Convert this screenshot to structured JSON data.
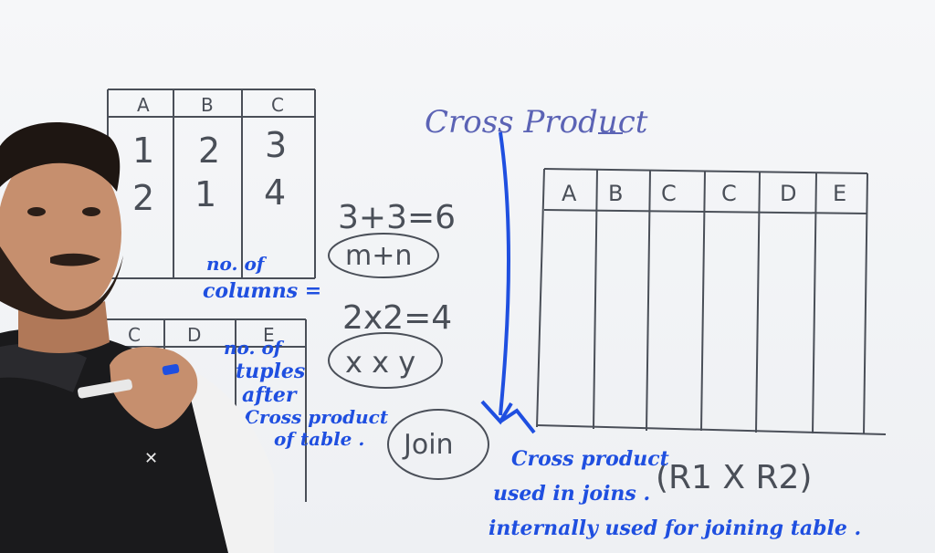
{
  "left_table": {
    "headers": [
      "A",
      "B",
      "C"
    ],
    "rows": [
      [
        "1",
        "2",
        "3"
      ],
      [
        "2",
        "1",
        "4"
      ]
    ]
  },
  "lower_table": {
    "headers": [
      "C",
      "D",
      "E"
    ]
  },
  "title": "Cross Product",
  "columns_eq": "3+3=6",
  "columns_formula": "m+n",
  "tuples_eq": "2x2=4",
  "tuples_formula": "x x y",
  "join_label": "Join",
  "product_label": "(R1 X R2)",
  "right_table": {
    "headers": [
      "A",
      "B",
      "C",
      "C",
      "D",
      "E"
    ]
  },
  "notes": {
    "columns": [
      "no. of",
      "columns ="
    ],
    "tuples": [
      "no. of",
      "tuples",
      "after",
      "Cross product",
      "of table ."
    ],
    "bottom": [
      "Cross product",
      "used in joins .",
      "internally used for joining table ."
    ]
  },
  "colors": {
    "marker": "#4a4f58",
    "pen": "#1f4fe0",
    "shirt": "#1a1a1c",
    "skin": "#c68f6e"
  }
}
